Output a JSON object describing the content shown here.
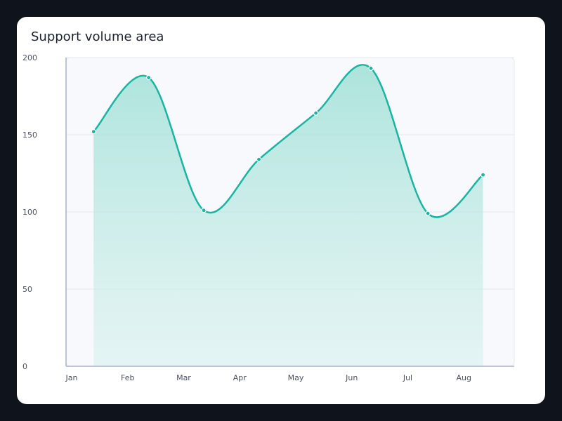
{
  "card": {
    "title": "Support volume area"
  },
  "chart_data": {
    "type": "area",
    "title": "Support volume area",
    "xlabel": "",
    "ylabel": "",
    "x_ticks": [
      "Jan",
      "Feb",
      "Mar",
      "Apr",
      "May",
      "Jun",
      "Jul",
      "Aug"
    ],
    "y_ticks": [
      0,
      50,
      100,
      150,
      200
    ],
    "ylim": [
      0,
      200
    ],
    "grid": true,
    "legend": "none",
    "series": [
      {
        "x": [
          "2024-01-16",
          "2024-02-15",
          "2024-03-16",
          "2024-04-15",
          "2024-05-16",
          "2024-06-15",
          "2024-07-16",
          "2024-08-15"
        ],
        "values": [
          152,
          187,
          101,
          134,
          164,
          193,
          99,
          124
        ]
      }
    ],
    "colors": {
      "line": "#1ab5a2",
      "fill": "#9fe0d6",
      "plot_bg": "#f7f9fd",
      "grid": "#e3e7ee",
      "axis": "#a9b3c6"
    }
  }
}
